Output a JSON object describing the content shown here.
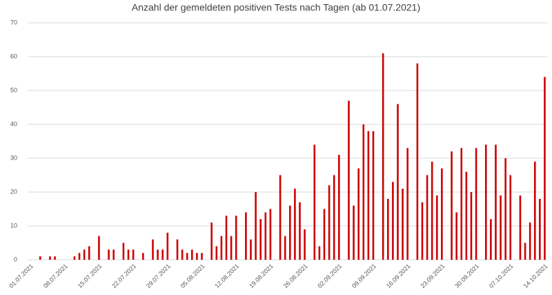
{
  "chart_data": {
    "type": "bar",
    "title": "Anzahl der gemeldeten positiven Tests nach Tagen (ab 01.07.2021)",
    "categories": [
      "01.07.2021",
      null,
      null,
      null,
      null,
      null,
      null,
      "08.07.2021",
      null,
      null,
      null,
      null,
      null,
      null,
      "15.07.2021",
      null,
      null,
      null,
      null,
      null,
      null,
      "22.07.2021",
      null,
      null,
      null,
      null,
      null,
      null,
      "29.07.2021",
      null,
      null,
      null,
      null,
      null,
      null,
      "05.08.2021",
      null,
      null,
      null,
      null,
      null,
      null,
      "12.08.2021",
      null,
      null,
      null,
      null,
      null,
      null,
      "19.08.2021",
      null,
      null,
      null,
      null,
      null,
      null,
      "26.08.2021",
      null,
      null,
      null,
      null,
      null,
      null,
      "02.09.2021",
      null,
      null,
      null,
      null,
      null,
      null,
      "09.09.2021",
      null,
      null,
      null,
      null,
      null,
      null,
      "16.09.2021",
      null,
      null,
      null,
      null,
      null,
      null,
      "23.09.2021",
      null,
      null,
      null,
      null,
      null,
      null,
      "30.09.2021",
      null,
      null,
      null,
      null,
      null,
      null,
      "07.10.2021",
      null,
      null,
      null,
      null,
      null,
      null,
      "14.10.2021"
    ],
    "values": [
      0,
      0,
      1,
      0,
      1,
      1,
      0,
      0,
      0,
      1,
      2,
      3,
      4,
      0,
      7,
      0,
      3,
      3,
      0,
      5,
      3,
      3,
      0,
      2,
      0,
      6,
      3,
      3,
      8,
      0,
      6,
      3,
      2,
      3,
      2,
      2,
      0,
      11,
      4,
      7,
      13,
      7,
      13,
      0,
      14,
      6,
      20,
      12,
      14,
      15,
      0,
      25,
      7,
      16,
      21,
      17,
      9,
      0,
      34,
      4,
      15,
      22,
      25,
      31,
      0,
      47,
      16,
      27,
      40,
      38,
      38,
      0,
      61,
      18,
      23,
      46,
      21,
      33,
      0,
      58,
      17,
      25,
      29,
      19,
      27,
      0,
      32,
      14,
      33,
      26,
      20,
      33,
      0,
      34,
      12,
      34,
      19,
      30,
      25,
      0,
      19,
      5,
      11,
      29,
      18,
      54
    ],
    "color": "#cc0000",
    "ylim": [
      0,
      70
    ],
    "yticks": [
      0,
      10,
      20,
      30,
      40,
      50,
      60,
      70
    ],
    "grid": true
  }
}
